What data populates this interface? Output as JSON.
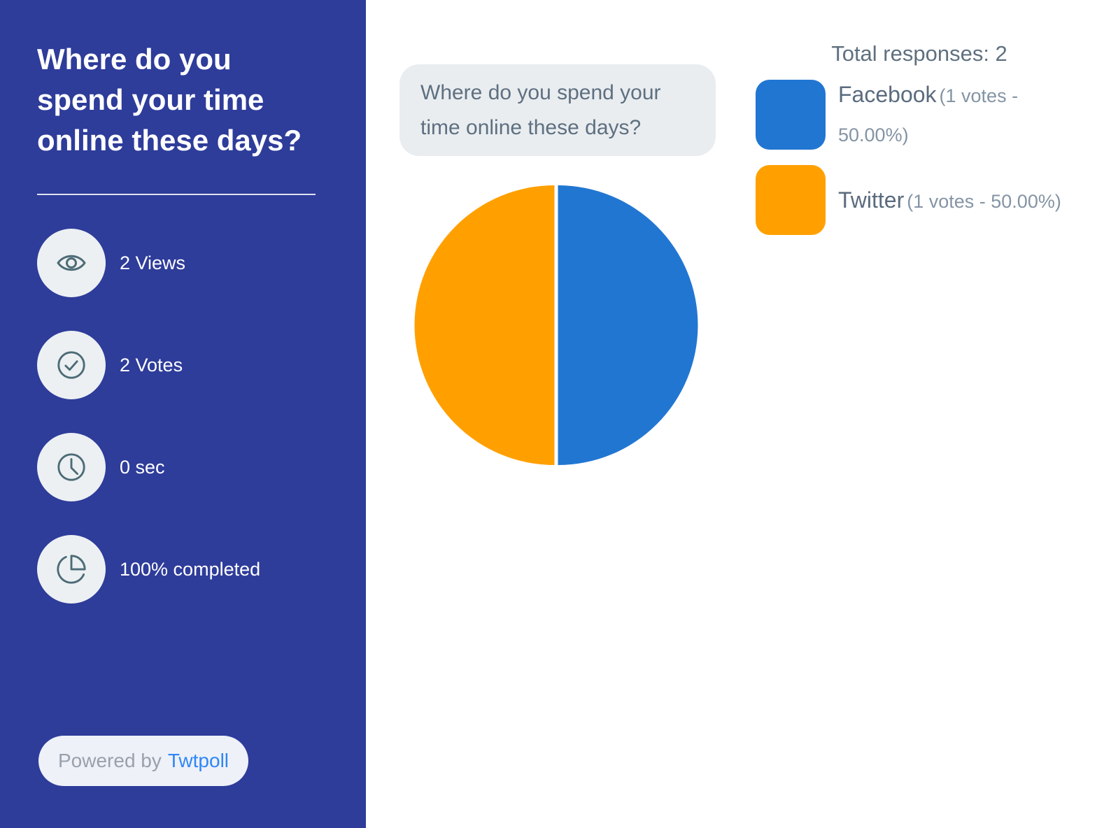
{
  "sidebar": {
    "question": "Where do you spend your time online these days?",
    "stats": [
      {
        "icon": "eye-icon",
        "label": "2 Views"
      },
      {
        "icon": "check-circle-icon",
        "label": "2 Votes"
      },
      {
        "icon": "clock-icon",
        "label": "0 sec"
      },
      {
        "icon": "pie-chart-icon",
        "label": "100% completed"
      }
    ],
    "powered_by": {
      "prefix": "Powered by",
      "brand": "Twtpoll"
    }
  },
  "main": {
    "question_bubble": "Where do you spend your time online these days?",
    "legend": {
      "title": "Total responses: 2",
      "items": [
        {
          "name": "Facebook",
          "detail": "(1 votes - 50.00%)"
        },
        {
          "name": "Twitter",
          "detail": "(1 votes - 50.00%)"
        }
      ]
    }
  },
  "chart_data": {
    "type": "pie",
    "title": "Where do you spend your time online these days?",
    "total_responses": 2,
    "categories": [
      "Facebook",
      "Twitter"
    ],
    "values": [
      1,
      1
    ],
    "percentages": [
      50.0,
      50.0
    ],
    "colors": [
      "#2176d2",
      "#ffa000"
    ],
    "start_angle_deg": -90,
    "direction": "clockwise",
    "legend_position": "top-right"
  },
  "colors": {
    "sidebar_background": "#2e3c9a",
    "facebook_blue": "#2176d2",
    "twitter_orange": "#ffa000",
    "link_blue": "#2f86f6",
    "icon_stroke": "#4c6b75",
    "badge_background": "#ecf0f3",
    "bubble_background": "#e9edf0",
    "slate_text": "#5a6b7e"
  }
}
